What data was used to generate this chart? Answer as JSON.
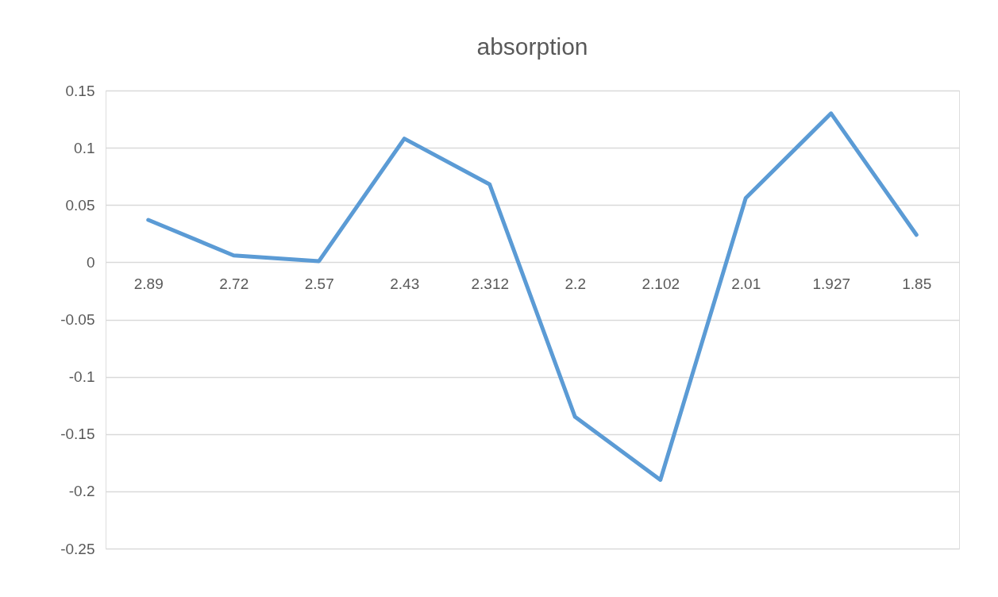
{
  "chart_data": {
    "type": "line",
    "title": "absorption",
    "categories": [
      "2.89",
      "2.72",
      "2.57",
      "2.43",
      "2.312",
      "2.2",
      "2.102",
      "2.01",
      "1.927",
      "1.85"
    ],
    "series": [
      {
        "color": "#5b9bd5",
        "values": [
          0.037,
          0.006,
          0.001,
          0.108,
          0.068,
          -0.135,
          -0.19,
          0.056,
          0.13,
          0.024
        ]
      }
    ],
    "ylim": [
      -0.25,
      0.15
    ],
    "yticks": [
      -0.25,
      -0.2,
      -0.15,
      -0.1,
      -0.05,
      0,
      0.05,
      0.1,
      0.15
    ],
    "grid": "y",
    "marker": "none",
    "line_style": "solid"
  }
}
